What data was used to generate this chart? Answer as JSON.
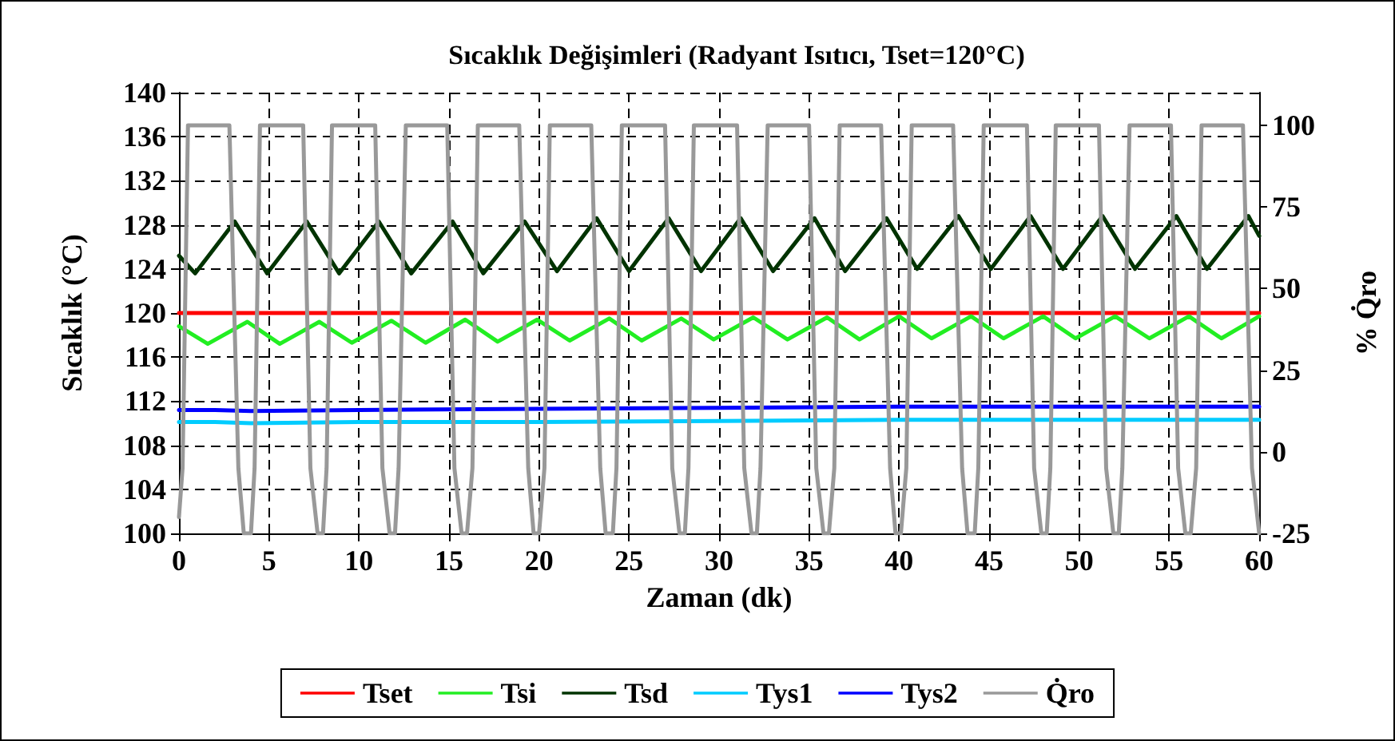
{
  "chart_data": {
    "type": "line",
    "title": "Sıcaklık Değişimleri (Radyant Isıtıcı, Tset=120°C)",
    "xlabel": "Zaman (dk)",
    "ylabel": "Sıcaklık (°C)",
    "y2label": "% Q̇ro",
    "xlim": [
      0,
      60
    ],
    "xticks": [
      0,
      5,
      10,
      15,
      20,
      25,
      30,
      35,
      40,
      45,
      50,
      55,
      60
    ],
    "ylim": [
      100,
      140
    ],
    "yticks": [
      100,
      104,
      108,
      112,
      116,
      120,
      124,
      128,
      132,
      136,
      140
    ],
    "y2lim": [
      -25,
      110
    ],
    "y2ticks": [
      -25,
      0,
      25,
      50,
      75,
      100
    ],
    "grid": true,
    "legend": "bottom",
    "marker": "none",
    "line_style": "solid",
    "series": [
      {
        "name": "Tset",
        "color": "#ff0000",
        "x": [
          0,
          60
        ],
        "values": [
          120,
          120
        ]
      },
      {
        "name": "Tsi",
        "color": "#22ee22",
        "x": [
          0,
          1.6,
          3.8,
          5.6,
          7.8,
          9.6,
          11.8,
          13.7,
          15.9,
          17.7,
          19.9,
          21.7,
          23.9,
          25.7,
          27.9,
          29.7,
          31.9,
          33.8,
          36.0,
          37.8,
          40.0,
          41.8,
          44.0,
          45.8,
          48.0,
          49.8,
          52.0,
          53.9,
          56.1,
          57.9,
          60
        ],
        "values": [
          118.8,
          117.2,
          119.2,
          117.2,
          119.2,
          117.3,
          119.3,
          117.3,
          119.4,
          117.4,
          119.4,
          117.5,
          119.5,
          117.5,
          119.5,
          117.6,
          119.6,
          117.6,
          119.6,
          117.6,
          119.7,
          117.7,
          119.7,
          117.7,
          119.7,
          117.7,
          119.7,
          117.7,
          119.7,
          117.7,
          119.7
        ]
      },
      {
        "name": "Tsd",
        "color": "#003300",
        "x": [
          0,
          0.9,
          3.1,
          4.9,
          7.1,
          8.9,
          11.1,
          12.9,
          15.2,
          16.9,
          19.2,
          21.0,
          23.2,
          25.0,
          27.2,
          29.0,
          31.2,
          33.0,
          35.3,
          37.0,
          39.3,
          41.0,
          43.3,
          45.1,
          47.3,
          49.1,
          51.3,
          53.1,
          55.4,
          57.1,
          59.4,
          60
        ],
        "values": [
          125.2,
          123.6,
          128.3,
          123.6,
          128.3,
          123.6,
          128.3,
          123.6,
          128.3,
          123.6,
          128.3,
          123.8,
          128.6,
          123.8,
          128.6,
          123.8,
          128.6,
          123.8,
          128.6,
          123.8,
          128.6,
          124.0,
          128.8,
          124.0,
          128.8,
          124.0,
          128.8,
          124.0,
          128.8,
          124.0,
          128.8,
          127.0
        ]
      },
      {
        "name": "Tys1",
        "color": "#00ccff",
        "x": [
          0,
          2,
          4,
          10,
          20,
          30,
          40,
          50,
          60
        ],
        "values": [
          110.1,
          110.1,
          110.0,
          110.1,
          110.1,
          110.2,
          110.3,
          110.3,
          110.3
        ]
      },
      {
        "name": "Tys2",
        "color": "#0000ff",
        "x": [
          0,
          2,
          4,
          10,
          20,
          30,
          40,
          50,
          60
        ],
        "values": [
          111.2,
          111.2,
          111.1,
          111.2,
          111.3,
          111.4,
          111.5,
          111.5,
          111.5
        ]
      },
      {
        "name": "Q̇ro",
        "color": "#999999",
        "axis": "y2",
        "x": [
          0,
          0.2,
          0.5,
          2.8,
          3.3,
          3.6,
          4.0,
          4.2,
          4.5,
          6.9,
          7.3,
          7.7,
          8.0,
          8.2,
          8.5,
          10.9,
          11.3,
          11.7,
          12.0,
          12.2,
          12.6,
          14.9,
          15.3,
          15.7,
          16.0,
          16.3,
          16.6,
          18.9,
          19.4,
          19.7,
          20.0,
          20.3,
          20.6,
          22.9,
          23.4,
          23.7,
          24.1,
          24.3,
          24.6,
          27.0,
          27.4,
          27.8,
          28.1,
          28.3,
          28.6,
          31.0,
          31.4,
          31.8,
          32.1,
          32.3,
          32.7,
          35.0,
          35.4,
          35.8,
          36.1,
          36.4,
          36.7,
          39.0,
          39.5,
          39.8,
          40.1,
          40.4,
          40.7,
          43.0,
          43.5,
          43.8,
          44.2,
          44.4,
          44.7,
          47.1,
          47.5,
          47.9,
          48.2,
          48.4,
          48.7,
          51.1,
          51.5,
          51.9,
          52.2,
          52.4,
          52.8,
          55.1,
          55.5,
          55.9,
          56.2,
          56.5,
          56.8,
          59.1,
          59.6,
          60.0
        ],
        "values": [
          -20,
          -5,
          100,
          100,
          -5,
          -25,
          -25,
          -5,
          100,
          100,
          -5,
          -25,
          -25,
          -5,
          100,
          100,
          -5,
          -25,
          -25,
          -5,
          100,
          100,
          -5,
          -25,
          -25,
          -5,
          100,
          100,
          -5,
          -25,
          -25,
          -5,
          100,
          100,
          -5,
          -25,
          -25,
          -5,
          100,
          100,
          -5,
          -25,
          -25,
          -5,
          100,
          100,
          -5,
          -25,
          -25,
          -5,
          100,
          100,
          -5,
          -25,
          -25,
          -5,
          100,
          100,
          -5,
          -25,
          -25,
          -5,
          100,
          100,
          -5,
          -25,
          -25,
          -5,
          100,
          100,
          -5,
          -25,
          -25,
          -5,
          100,
          100,
          -5,
          -25,
          -25,
          -5,
          100,
          100,
          -5,
          -25,
          -25,
          -5,
          100,
          100,
          -5,
          -25
        ]
      }
    ]
  }
}
